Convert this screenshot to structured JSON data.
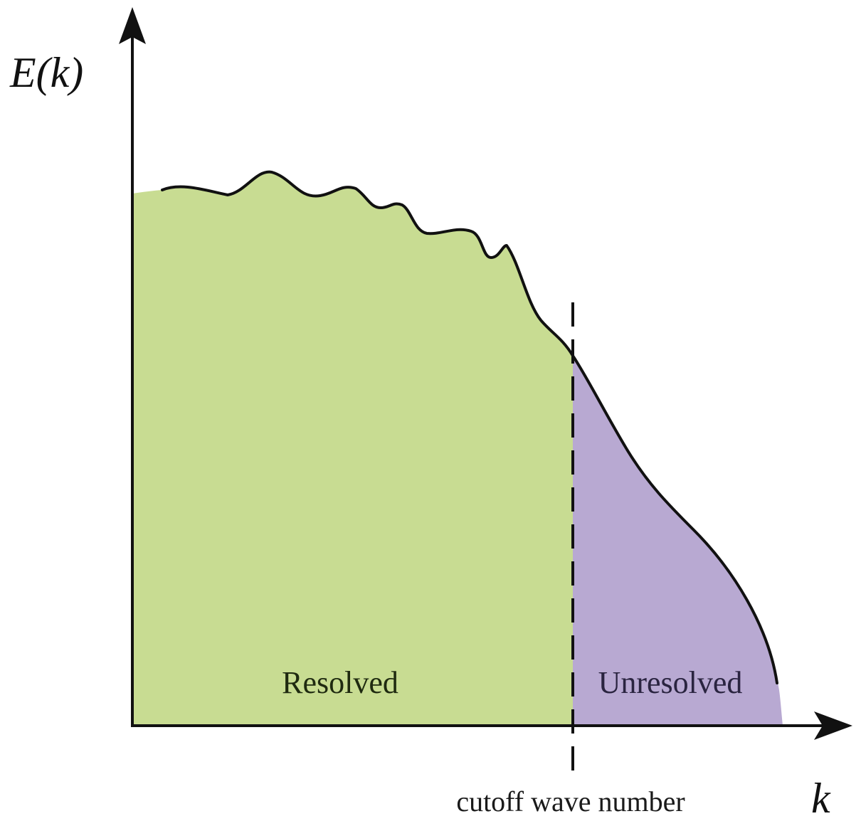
{
  "diagram": {
    "y_axis_label": {
      "prefix": "E(",
      "var": "k",
      "suffix": ")"
    },
    "x_axis_label": "k",
    "regions": {
      "resolved": {
        "label": "Resolved",
        "color": "#c8dc92"
      },
      "unresolved": {
        "label": "Unresolved",
        "color": "#b8a9d2"
      }
    },
    "cutoff_label": "cutoff wave number",
    "curve_color": "#111111"
  }
}
